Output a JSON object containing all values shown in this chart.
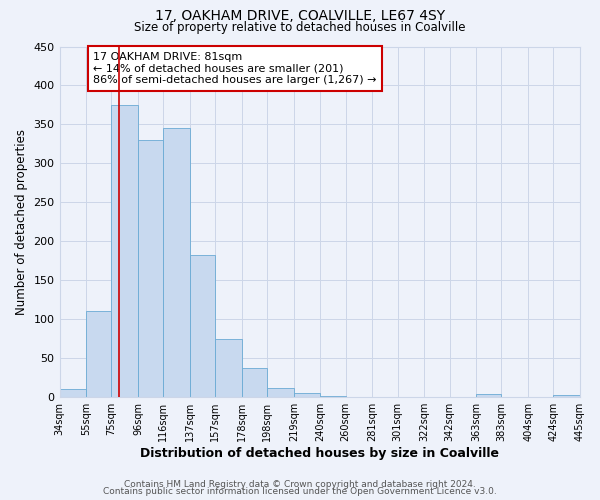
{
  "title": "17, OAKHAM DRIVE, COALVILLE, LE67 4SY",
  "subtitle": "Size of property relative to detached houses in Coalville",
  "xlabel": "Distribution of detached houses by size in Coalville",
  "ylabel": "Number of detached properties",
  "bar_edges": [
    34,
    55,
    75,
    96,
    116,
    137,
    157,
    178,
    198,
    219,
    240,
    260,
    281,
    301,
    322,
    342,
    363,
    383,
    404,
    424,
    445
  ],
  "bar_heights": [
    10,
    110,
    375,
    330,
    345,
    183,
    75,
    37,
    12,
    5,
    2,
    0,
    0,
    0,
    0,
    0,
    4,
    0,
    0,
    3
  ],
  "bar_color": "#c8d9ef",
  "bar_edgecolor": "#6aaad4",
  "grid_color": "#ccd6e8",
  "vline_x": 81,
  "vline_color": "#cc0000",
  "annotation_line1": "17 OAKHAM DRIVE: 81sqm",
  "annotation_line2": "← 14% of detached houses are smaller (201)",
  "annotation_line3": "86% of semi-detached houses are larger (1,267) →",
  "ylim": [
    0,
    450
  ],
  "yticks": [
    0,
    50,
    100,
    150,
    200,
    250,
    300,
    350,
    400,
    450
  ],
  "tick_labels": [
    "34sqm",
    "55sqm",
    "75sqm",
    "96sqm",
    "116sqm",
    "137sqm",
    "157sqm",
    "178sqm",
    "198sqm",
    "219sqm",
    "240sqm",
    "260sqm",
    "281sqm",
    "301sqm",
    "322sqm",
    "342sqm",
    "363sqm",
    "383sqm",
    "404sqm",
    "424sqm",
    "445sqm"
  ],
  "footer1": "Contains HM Land Registry data © Crown copyright and database right 2024.",
  "footer2": "Contains public sector information licensed under the Open Government Licence v3.0.",
  "bg_color": "#eef2fa"
}
